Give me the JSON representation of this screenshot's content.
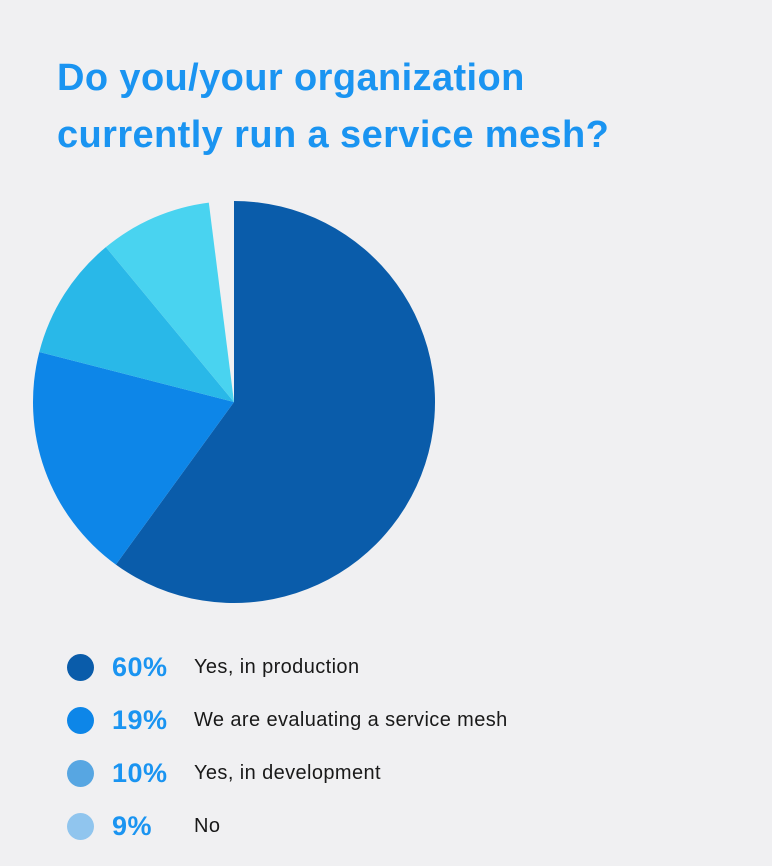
{
  "page": {
    "background_color": "#f0f0f2"
  },
  "title": {
    "text": "Do you/your organization\ncurrently run a service mesh?",
    "color": "#1a94f1"
  },
  "chart_data": {
    "type": "pie",
    "title": "Do you/your organization currently run a service mesh?",
    "start_angle_deg": -90,
    "direction": "clockwise",
    "legend_position": "bottom-left",
    "value_label_color": "#1a94f1",
    "label_text_color": "#191919",
    "slices": [
      {
        "label": "Yes, in production",
        "value_pct": 60,
        "pct_label": "60%",
        "slice_color": "#0a5caa",
        "legend_dot_color": "#0a5caa"
      },
      {
        "label": "We are evaluating a service mesh",
        "value_pct": 19,
        "pct_label": "19%",
        "slice_color": "#0d86e8",
        "legend_dot_color": "#0d86e8"
      },
      {
        "label": "Yes, in development",
        "value_pct": 10,
        "pct_label": "10%",
        "slice_color": "#29b8e8",
        "legend_dot_color": "#57a6e2"
      },
      {
        "label": "No",
        "value_pct": 9,
        "pct_label": "9%",
        "slice_color": "#49d3f0",
        "legend_dot_color": "#90c5ee"
      }
    ]
  }
}
